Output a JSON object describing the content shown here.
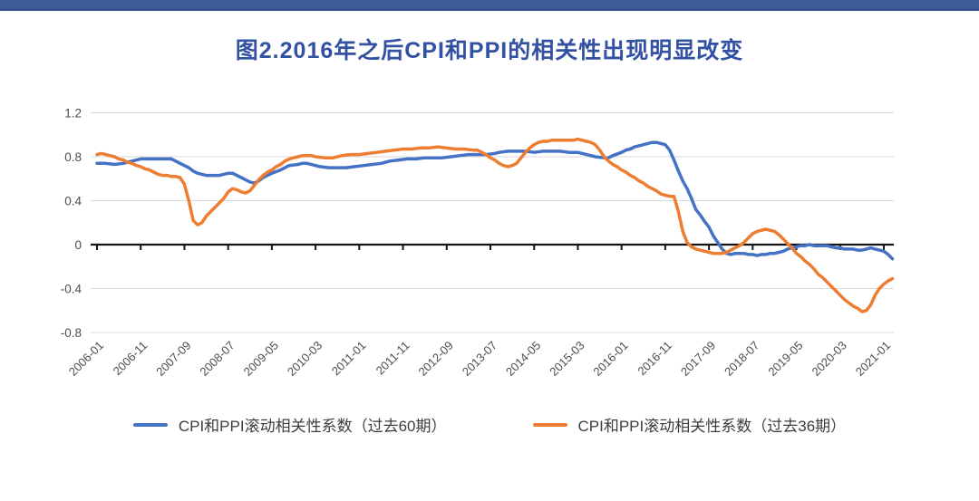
{
  "page": {
    "top_bar_color": "#3e5b99",
    "background_color": "#ffffff",
    "title_color": "#3351a3"
  },
  "title": {
    "text": "图2.2016年之后CPI和PPI的相关性出现明显改变"
  },
  "chart_data": {
    "type": "line",
    "title": "图2.2016年之后CPI和PPI的相关性出现明显改变",
    "xlabel": "",
    "ylabel": "",
    "ylim": [
      -0.8,
      1.2
    ],
    "y_ticks": [
      1.2,
      0.8,
      0.4,
      0,
      -0.4,
      -0.8
    ],
    "y_tick_labels": [
      "1.2",
      "0.8",
      "0.4",
      "0",
      "-0.4",
      "-0.8"
    ],
    "grid": true,
    "grid_color": "#d8d8d8",
    "axis_color": "#141414",
    "legend_position": "bottom",
    "x_unit": "months since 2006-01",
    "x_tick_months": [
      0,
      10,
      20,
      30,
      40,
      50,
      60,
      70,
      80,
      90,
      100,
      110,
      120,
      130,
      140,
      150,
      160,
      170,
      180
    ],
    "x_tick_labels": [
      "2006-01",
      "2006-11",
      "2007-09",
      "2008-07",
      "2009-05",
      "2010-03",
      "2011-01",
      "2011-11",
      "2012-09",
      "2013-07",
      "2014-05",
      "2015-03",
      "2016-01",
      "2016-11",
      "2017-09",
      "2018-07",
      "2019-05",
      "2020-03",
      "2021-01"
    ],
    "series": [
      {
        "name": "CPI和PPI滚动相关性系数（过去60期）",
        "color": "#4472c4",
        "points": [
          [
            0,
            0.74
          ],
          [
            2,
            0.74
          ],
          [
            4,
            0.73
          ],
          [
            6,
            0.74
          ],
          [
            8,
            0.76
          ],
          [
            10,
            0.78
          ],
          [
            12,
            0.78
          ],
          [
            14,
            0.78
          ],
          [
            16,
            0.78
          ],
          [
            17,
            0.78
          ],
          [
            18,
            0.76
          ],
          [
            19,
            0.74
          ],
          [
            20,
            0.72
          ],
          [
            21,
            0.7
          ],
          [
            22,
            0.67
          ],
          [
            23,
            0.65
          ],
          [
            24,
            0.64
          ],
          [
            25,
            0.63
          ],
          [
            26,
            0.63
          ],
          [
            27,
            0.63
          ],
          [
            28,
            0.63
          ],
          [
            29,
            0.64
          ],
          [
            30,
            0.65
          ],
          [
            31,
            0.65
          ],
          [
            32,
            0.63
          ],
          [
            33,
            0.61
          ],
          [
            34,
            0.59
          ],
          [
            35,
            0.57
          ],
          [
            36,
            0.56
          ],
          [
            37,
            0.58
          ],
          [
            38,
            0.61
          ],
          [
            40,
            0.65
          ],
          [
            42,
            0.68
          ],
          [
            43,
            0.7
          ],
          [
            44,
            0.72
          ],
          [
            46,
            0.73
          ],
          [
            47,
            0.74
          ],
          [
            48,
            0.74
          ],
          [
            50,
            0.72
          ],
          [
            51,
            0.71
          ],
          [
            53,
            0.7
          ],
          [
            55,
            0.7
          ],
          [
            57,
            0.7
          ],
          [
            59,
            0.71
          ],
          [
            61,
            0.72
          ],
          [
            63,
            0.73
          ],
          [
            65,
            0.74
          ],
          [
            67,
            0.76
          ],
          [
            69,
            0.77
          ],
          [
            71,
            0.78
          ],
          [
            73,
            0.78
          ],
          [
            75,
            0.79
          ],
          [
            77,
            0.79
          ],
          [
            79,
            0.79
          ],
          [
            81,
            0.8
          ],
          [
            83,
            0.81
          ],
          [
            85,
            0.82
          ],
          [
            87,
            0.82
          ],
          [
            89,
            0.82
          ],
          [
            91,
            0.83
          ],
          [
            92,
            0.84
          ],
          [
            94,
            0.85
          ],
          [
            96,
            0.85
          ],
          [
            98,
            0.85
          ],
          [
            100,
            0.84
          ],
          [
            102,
            0.85
          ],
          [
            104,
            0.85
          ],
          [
            106,
            0.85
          ],
          [
            108,
            0.84
          ],
          [
            110,
            0.84
          ],
          [
            111,
            0.83
          ],
          [
            112,
            0.82
          ],
          [
            114,
            0.8
          ],
          [
            116,
            0.79
          ],
          [
            117,
            0.79
          ],
          [
            118,
            0.81
          ],
          [
            120,
            0.84
          ],
          [
            121,
            0.86
          ],
          [
            122,
            0.87
          ],
          [
            123,
            0.89
          ],
          [
            124,
            0.9
          ],
          [
            125,
            0.91
          ],
          [
            126,
            0.92
          ],
          [
            127,
            0.93
          ],
          [
            128,
            0.93
          ],
          [
            129,
            0.92
          ],
          [
            130,
            0.91
          ],
          [
            131,
            0.86
          ],
          [
            132,
            0.77
          ],
          [
            133,
            0.67
          ],
          [
            134,
            0.58
          ],
          [
            135,
            0.51
          ],
          [
            136,
            0.42
          ],
          [
            137,
            0.32
          ],
          [
            138,
            0.27
          ],
          [
            139,
            0.21
          ],
          [
            140,
            0.16
          ],
          [
            141,
            0.08
          ],
          [
            142,
            0.02
          ],
          [
            143,
            -0.04
          ],
          [
            144,
            -0.08
          ],
          [
            145,
            -0.09
          ],
          [
            146,
            -0.08
          ],
          [
            147,
            -0.08
          ],
          [
            148,
            -0.08
          ],
          [
            149,
            -0.09
          ],
          [
            150,
            -0.09
          ],
          [
            151,
            -0.1
          ],
          [
            152,
            -0.09
          ],
          [
            153,
            -0.09
          ],
          [
            154,
            -0.08
          ],
          [
            155,
            -0.08
          ],
          [
            156,
            -0.07
          ],
          [
            157,
            -0.06
          ],
          [
            158,
            -0.04
          ],
          [
            159,
            -0.03
          ],
          [
            160,
            -0.02
          ],
          [
            161,
            -0.01
          ],
          [
            162,
            -0.01
          ],
          [
            163,
            0.0
          ],
          [
            164,
            -0.01
          ],
          [
            165,
            -0.01
          ],
          [
            166,
            -0.01
          ],
          [
            167,
            -0.01
          ],
          [
            168,
            -0.02
          ],
          [
            169,
            -0.03
          ],
          [
            170,
            -0.03
          ],
          [
            171,
            -0.04
          ],
          [
            172,
            -0.04
          ],
          [
            173,
            -0.04
          ],
          [
            174,
            -0.05
          ],
          [
            175,
            -0.05
          ],
          [
            176,
            -0.04
          ],
          [
            177,
            -0.03
          ],
          [
            178,
            -0.04
          ],
          [
            179,
            -0.05
          ],
          [
            180,
            -0.06
          ],
          [
            181,
            -0.09
          ],
          [
            182,
            -0.13
          ]
        ]
      },
      {
        "name": "CPI和PPI滚动相关性系数（过去36期）",
        "color": "#ed7d31",
        "points": [
          [
            0,
            0.82
          ],
          [
            1,
            0.83
          ],
          [
            2,
            0.82
          ],
          [
            3,
            0.81
          ],
          [
            4,
            0.8
          ],
          [
            5,
            0.78
          ],
          [
            6,
            0.77
          ],
          [
            7,
            0.75
          ],
          [
            8,
            0.74
          ],
          [
            9,
            0.72
          ],
          [
            10,
            0.71
          ],
          [
            11,
            0.69
          ],
          [
            12,
            0.68
          ],
          [
            13,
            0.66
          ],
          [
            14,
            0.64
          ],
          [
            15,
            0.63
          ],
          [
            16,
            0.63
          ],
          [
            17,
            0.62
          ],
          [
            18,
            0.62
          ],
          [
            19,
            0.61
          ],
          [
            20,
            0.55
          ],
          [
            21,
            0.4
          ],
          [
            22,
            0.22
          ],
          [
            23,
            0.18
          ],
          [
            24,
            0.2
          ],
          [
            25,
            0.26
          ],
          [
            26,
            0.3
          ],
          [
            27,
            0.34
          ],
          [
            28,
            0.38
          ],
          [
            29,
            0.42
          ],
          [
            30,
            0.48
          ],
          [
            31,
            0.51
          ],
          [
            32,
            0.5
          ],
          [
            33,
            0.48
          ],
          [
            34,
            0.47
          ],
          [
            35,
            0.49
          ],
          [
            36,
            0.54
          ],
          [
            37,
            0.59
          ],
          [
            38,
            0.63
          ],
          [
            39,
            0.66
          ],
          [
            40,
            0.68
          ],
          [
            41,
            0.71
          ],
          [
            42,
            0.73
          ],
          [
            43,
            0.76
          ],
          [
            44,
            0.78
          ],
          [
            45,
            0.79
          ],
          [
            46,
            0.8
          ],
          [
            47,
            0.81
          ],
          [
            48,
            0.81
          ],
          [
            49,
            0.81
          ],
          [
            50,
            0.8
          ],
          [
            52,
            0.79
          ],
          [
            54,
            0.79
          ],
          [
            56,
            0.81
          ],
          [
            58,
            0.82
          ],
          [
            60,
            0.82
          ],
          [
            62,
            0.83
          ],
          [
            64,
            0.84
          ],
          [
            66,
            0.85
          ],
          [
            68,
            0.86
          ],
          [
            70,
            0.87
          ],
          [
            72,
            0.87
          ],
          [
            74,
            0.88
          ],
          [
            76,
            0.88
          ],
          [
            78,
            0.89
          ],
          [
            80,
            0.88
          ],
          [
            82,
            0.87
          ],
          [
            84,
            0.87
          ],
          [
            86,
            0.86
          ],
          [
            87,
            0.86
          ],
          [
            88,
            0.84
          ],
          [
            89,
            0.82
          ],
          [
            90,
            0.79
          ],
          [
            91,
            0.77
          ],
          [
            92,
            0.74
          ],
          [
            93,
            0.72
          ],
          [
            94,
            0.71
          ],
          [
            95,
            0.72
          ],
          [
            96,
            0.74
          ],
          [
            97,
            0.79
          ],
          [
            98,
            0.84
          ],
          [
            99,
            0.88
          ],
          [
            100,
            0.91
          ],
          [
            101,
            0.93
          ],
          [
            102,
            0.94
          ],
          [
            103,
            0.94
          ],
          [
            104,
            0.95
          ],
          [
            105,
            0.95
          ],
          [
            106,
            0.95
          ],
          [
            107,
            0.95
          ],
          [
            108,
            0.95
          ],
          [
            109,
            0.95
          ],
          [
            110,
            0.96
          ],
          [
            111,
            0.95
          ],
          [
            112,
            0.94
          ],
          [
            113,
            0.93
          ],
          [
            114,
            0.91
          ],
          [
            115,
            0.86
          ],
          [
            116,
            0.8
          ],
          [
            117,
            0.76
          ],
          [
            118,
            0.73
          ],
          [
            119,
            0.71
          ],
          [
            120,
            0.68
          ],
          [
            121,
            0.66
          ],
          [
            122,
            0.63
          ],
          [
            123,
            0.61
          ],
          [
            124,
            0.58
          ],
          [
            125,
            0.56
          ],
          [
            126,
            0.53
          ],
          [
            127,
            0.51
          ],
          [
            128,
            0.49
          ],
          [
            129,
            0.46
          ],
          [
            130,
            0.45
          ],
          [
            131,
            0.44
          ],
          [
            132,
            0.44
          ],
          [
            133,
            0.3
          ],
          [
            134,
            0.12
          ],
          [
            135,
            0.02
          ],
          [
            136,
            -0.02
          ],
          [
            137,
            -0.04
          ],
          [
            138,
            -0.05
          ],
          [
            139,
            -0.06
          ],
          [
            140,
            -0.07
          ],
          [
            141,
            -0.08
          ],
          [
            142,
            -0.08
          ],
          [
            143,
            -0.08
          ],
          [
            144,
            -0.07
          ],
          [
            145,
            -0.05
          ],
          [
            146,
            -0.03
          ],
          [
            147,
            -0.01
          ],
          [
            148,
            0.02
          ],
          [
            149,
            0.06
          ],
          [
            150,
            0.1
          ],
          [
            151,
            0.12
          ],
          [
            152,
            0.13
          ],
          [
            153,
            0.14
          ],
          [
            154,
            0.13
          ],
          [
            155,
            0.12
          ],
          [
            156,
            0.09
          ],
          [
            157,
            0.05
          ],
          [
            158,
            0.01
          ],
          [
            159,
            -0.03
          ],
          [
            160,
            -0.08
          ],
          [
            161,
            -0.11
          ],
          [
            162,
            -0.15
          ],
          [
            163,
            -0.18
          ],
          [
            164,
            -0.22
          ],
          [
            165,
            -0.27
          ],
          [
            166,
            -0.3
          ],
          [
            167,
            -0.34
          ],
          [
            168,
            -0.38
          ],
          [
            169,
            -0.42
          ],
          [
            170,
            -0.46
          ],
          [
            171,
            -0.5
          ],
          [
            172,
            -0.53
          ],
          [
            173,
            -0.56
          ],
          [
            174,
            -0.58
          ],
          [
            175,
            -0.61
          ],
          [
            176,
            -0.6
          ],
          [
            177,
            -0.55
          ],
          [
            178,
            -0.46
          ],
          [
            179,
            -0.4
          ],
          [
            180,
            -0.36
          ],
          [
            181,
            -0.33
          ],
          [
            182,
            -0.31
          ]
        ]
      }
    ]
  },
  "legend": {
    "entries": [
      {
        "label": "CPI和PPI滚动相关性系数（过去60期）",
        "color": "#4472c4"
      },
      {
        "label": "CPI和PPI滚动相关性系数（过去36期）",
        "color": "#ed7d31"
      }
    ]
  }
}
